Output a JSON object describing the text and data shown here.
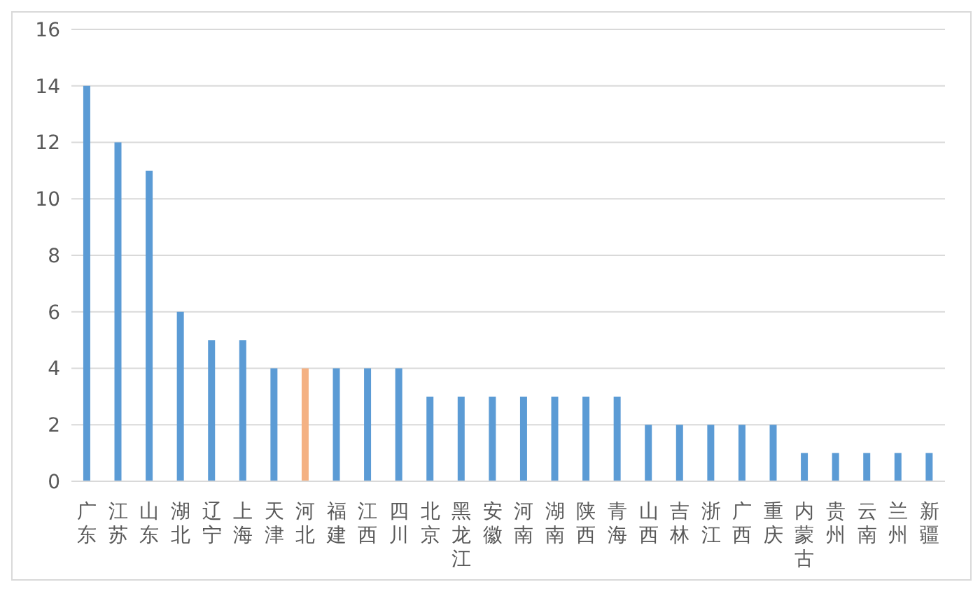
{
  "chart_data": {
    "type": "bar",
    "categories": [
      "广东",
      "江苏",
      "山东",
      "湖北",
      "辽宁",
      "上海",
      "天津",
      "河北",
      "福建",
      "江西",
      "四川",
      "北京",
      "黑龙江",
      "安徽",
      "河南",
      "湖南",
      "陕西",
      "青海",
      "山西",
      "吉林",
      "浙江",
      "广西",
      "重庆",
      "内蒙古",
      "贵州",
      "云南",
      "兰州",
      "新疆"
    ],
    "values": [
      14,
      12,
      11,
      6,
      5,
      5,
      4,
      4,
      4,
      4,
      4,
      3,
      3,
      3,
      3,
      3,
      3,
      3,
      2,
      2,
      2,
      2,
      2,
      1,
      1,
      1,
      1,
      1
    ],
    "colors": [
      "#5b9bd5",
      "#5b9bd5",
      "#5b9bd5",
      "#5b9bd5",
      "#5b9bd5",
      "#5b9bd5",
      "#5b9bd5",
      "#f4b183",
      "#5b9bd5",
      "#5b9bd5",
      "#5b9bd5",
      "#5b9bd5",
      "#5b9bd5",
      "#5b9bd5",
      "#5b9bd5",
      "#5b9bd5",
      "#5b9bd5",
      "#5b9bd5",
      "#5b9bd5",
      "#5b9bd5",
      "#5b9bd5",
      "#5b9bd5",
      "#5b9bd5",
      "#5b9bd5",
      "#5b9bd5",
      "#5b9bd5",
      "#5b9bd5",
      "#5b9bd5"
    ],
    "ylim": [
      0,
      16
    ],
    "yticks": [
      0,
      2,
      4,
      6,
      8,
      10,
      12,
      14,
      16
    ],
    "grid": "y",
    "legend": false
  }
}
